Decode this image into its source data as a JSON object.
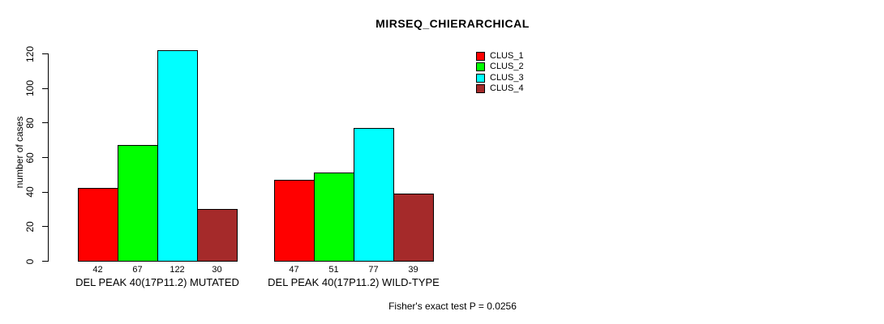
{
  "chart_data": {
    "type": "bar",
    "title": "MIRSEQ_CHIERARCHICAL",
    "ylabel": "number of cases",
    "ylim": [
      0,
      120
    ],
    "yticks": [
      0,
      20,
      40,
      60,
      80,
      100,
      120
    ],
    "categories": [
      "DEL PEAK 40(17P11.2) MUTATED",
      "DEL PEAK 40(17P11.2) WILD-TYPE"
    ],
    "series": [
      {
        "name": "CLUS_1",
        "color": "#FF0000",
        "values": [
          42,
          47
        ]
      },
      {
        "name": "CLUS_2",
        "color": "#00FF00",
        "values": [
          67,
          51
        ]
      },
      {
        "name": "CLUS_3",
        "color": "#00FFFF",
        "values": [
          122,
          77
        ]
      },
      {
        "name": "CLUS_4",
        "color": "#A52A2A",
        "values": [
          30,
          39
        ]
      }
    ],
    "bar_value_labels": [
      [
        42,
        67,
        122,
        30
      ],
      [
        47,
        51,
        77,
        39
      ]
    ],
    "legend_position": "top-right",
    "grid": "off",
    "annotation": "Fisher's exact test P = 0.0256",
    "background_color": "#ffffff",
    "text_color": "#000000"
  }
}
